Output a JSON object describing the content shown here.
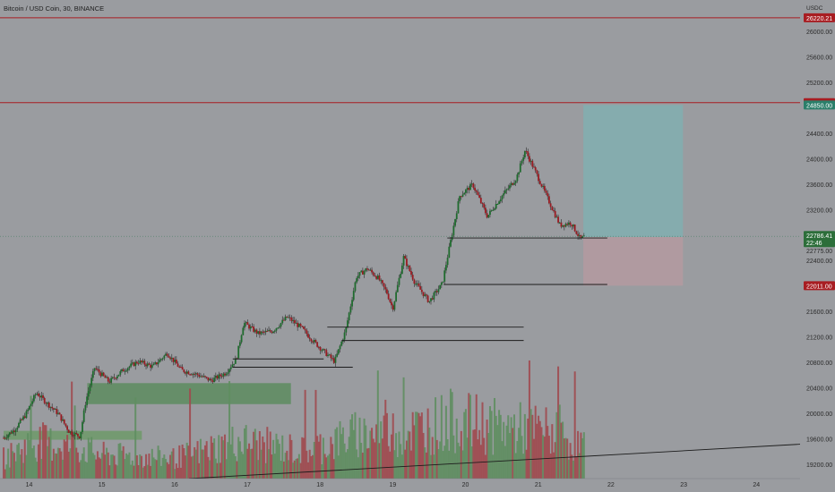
{
  "header": {
    "title": "Bitcoin / USD Coin, 30, BINANCE"
  },
  "chart_data": {
    "type": "candlestick",
    "price_unit": "USDC",
    "y_ticks": [
      26000,
      25600,
      25200,
      24400,
      24000,
      23600,
      23200,
      22400,
      21600,
      21200,
      20800,
      20400,
      20000,
      19600,
      19200
    ],
    "x_ticks": [
      "14",
      "15",
      "16",
      "17",
      "18",
      "19",
      "20",
      "21",
      "22",
      "23",
      "24"
    ],
    "ylim": [
      18980,
      26500
    ],
    "x_domain_days": [
      13.6,
      24.6
    ],
    "horizontal_lines": [
      {
        "price": 26220.21,
        "label": "26220.21",
        "color": "#a81d22"
      },
      {
        "price": 24887.49,
        "label": "24887.49",
        "color": "#a81d22"
      }
    ],
    "price_tags": [
      {
        "price": 26220.21,
        "label": "26220.21",
        "color": "#a81d22"
      },
      {
        "price": 24887.49,
        "label": "24887.49",
        "color": "#a81d22"
      },
      {
        "price": 24850.0,
        "label": "24850.00",
        "color": "#2a7f6a"
      },
      {
        "price": 22011.0,
        "label": "22011.00",
        "color": "#a81d22"
      }
    ],
    "last_price": {
      "price": 22786.41,
      "label": "22786.41",
      "countdown": "22:46",
      "color": "#2c6e3a"
    },
    "entry_price": {
      "price": 22775.0,
      "label": "22775.00"
    },
    "position": {
      "start_day": 21.62,
      "end_day": 22.99,
      "entry": 22775.0,
      "target": 24850.0,
      "stop": 22011.0,
      "profit_color": "#85acae",
      "loss_color": "#b09aa0"
    },
    "supply_demand_zones": [
      {
        "start_day": 14.8,
        "end_day": 17.6,
        "high": 20480,
        "low": 20150,
        "color": "#5d8c5f"
      },
      {
        "start_day": 13.65,
        "end_day": 15.55,
        "high": 19730,
        "low": 19590,
        "color": "#6d9a68"
      }
    ],
    "level_lines": [
      {
        "start_day": 19.75,
        "end_day": 21.95,
        "price": 22760
      },
      {
        "start_day": 19.7,
        "end_day": 21.95,
        "price": 22030
      },
      {
        "start_day": 18.1,
        "end_day": 20.8,
        "price": 21360
      },
      {
        "start_day": 18.3,
        "end_day": 20.8,
        "price": 21150
      },
      {
        "start_day": 16.8,
        "end_day": 18.05,
        "price": 20860
      },
      {
        "start_day": 16.8,
        "end_day": 18.45,
        "price": 20730
      }
    ],
    "trendline": {
      "start_day": 16.2,
      "start_price": 18980,
      "end_day": 24.6,
      "end_price": 19520
    },
    "price_path": [
      [
        13.65,
        19620
      ],
      [
        13.8,
        19750
      ],
      [
        13.95,
        19980
      ],
      [
        14.1,
        20330
      ],
      [
        14.25,
        20160
      ],
      [
        14.4,
        20000
      ],
      [
        14.55,
        19720
      ],
      [
        14.7,
        19640
      ],
      [
        14.78,
        20200
      ],
      [
        14.9,
        20720
      ],
      [
        15.1,
        20500
      ],
      [
        15.3,
        20690
      ],
      [
        15.5,
        20820
      ],
      [
        15.7,
        20740
      ],
      [
        15.9,
        20950
      ],
      [
        16.1,
        20680
      ],
      [
        16.3,
        20620
      ],
      [
        16.5,
        20520
      ],
      [
        16.7,
        20640
      ],
      [
        16.85,
        20860
      ],
      [
        16.95,
        21430
      ],
      [
        17.15,
        21260
      ],
      [
        17.35,
        21300
      ],
      [
        17.55,
        21520
      ],
      [
        17.75,
        21340
      ],
      [
        17.9,
        21150
      ],
      [
        18.05,
        20980
      ],
      [
        18.2,
        20820
      ],
      [
        18.35,
        21300
      ],
      [
        18.5,
        22150
      ],
      [
        18.65,
        22280
      ],
      [
        18.8,
        22130
      ],
      [
        18.92,
        21900
      ],
      [
        19.0,
        21650
      ],
      [
        19.15,
        22460
      ],
      [
        19.3,
        22070
      ],
      [
        19.5,
        21760
      ],
      [
        19.68,
        22040
      ],
      [
        19.78,
        22620
      ],
      [
        19.92,
        23420
      ],
      [
        20.1,
        23600
      ],
      [
        20.3,
        23100
      ],
      [
        20.5,
        23420
      ],
      [
        20.7,
        23700
      ],
      [
        20.82,
        24140
      ],
      [
        20.95,
        23830
      ],
      [
        21.05,
        23580
      ],
      [
        21.15,
        23330
      ],
      [
        21.3,
        22960
      ],
      [
        21.45,
        23000
      ],
      [
        21.58,
        22740
      ],
      [
        21.64,
        22786
      ]
    ],
    "volume_profile": [
      [
        13.65,
        0.3
      ],
      [
        14.1,
        0.55
      ],
      [
        14.7,
        0.45
      ],
      [
        15.0,
        0.35
      ],
      [
        16.0,
        0.3
      ],
      [
        16.9,
        0.55
      ],
      [
        17.8,
        0.4
      ],
      [
        18.5,
        0.65
      ],
      [
        19.2,
        0.7
      ],
      [
        19.8,
        0.85
      ],
      [
        20.5,
        0.75
      ],
      [
        21.1,
        0.7
      ],
      [
        21.6,
        0.5
      ]
    ]
  }
}
